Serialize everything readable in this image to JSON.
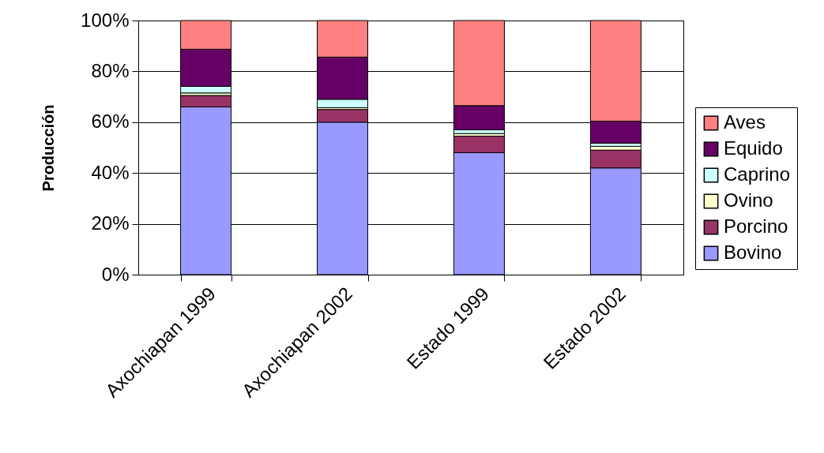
{
  "chart_data": {
    "type": "bar",
    "stacked": true,
    "ylabel": "Producción",
    "categories": [
      "Axochiapan 1999",
      "Axochiapan 2002",
      "Estado 1999",
      "Estado 2002"
    ],
    "series": [
      {
        "name": "Bovino",
        "color": "#9999ff",
        "values": [
          66,
          60,
          48,
          42
        ]
      },
      {
        "name": "Porcino",
        "color": "#993366",
        "values": [
          4.5,
          5,
          6.5,
          7
        ]
      },
      {
        "name": "Ovino",
        "color": "#ffffcc",
        "values": [
          1,
          0.7,
          1,
          1.5
        ]
      },
      {
        "name": "Caprino",
        "color": "#ccffff",
        "values": [
          2.6,
          3.3,
          1.5,
          1.2
        ]
      },
      {
        "name": "Equido",
        "color": "#660066",
        "values": [
          14.6,
          16.6,
          9.5,
          8.7
        ]
      },
      {
        "name": "Aves",
        "color": "#ff8080",
        "values": [
          11.3,
          14.4,
          33.5,
          39.6
        ]
      }
    ],
    "ylim": [
      0,
      100
    ],
    "yticks": [
      {
        "value": 0,
        "label": "0%"
      },
      {
        "value": 20,
        "label": "20%"
      },
      {
        "value": 40,
        "label": "40%"
      },
      {
        "value": 60,
        "label": "60%"
      },
      {
        "value": 80,
        "label": "80%"
      },
      {
        "value": 100,
        "label": "100%"
      }
    ],
    "grid": "y",
    "legend": "right"
  }
}
